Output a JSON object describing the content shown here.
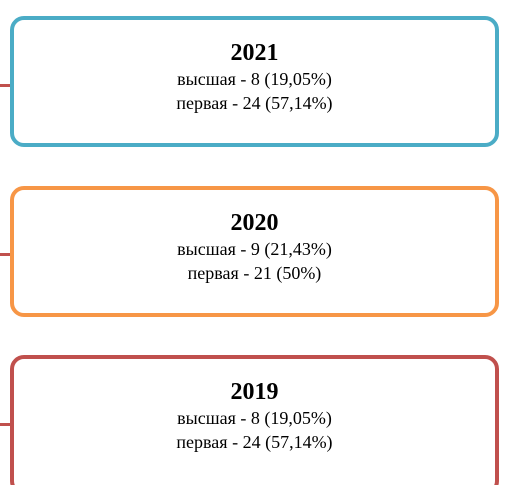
{
  "boxes": [
    {
      "title": "2021",
      "lines": [
        "высшая - 8 (19,05%)",
        "первая - 24 (57,14%)"
      ]
    },
    {
      "title": "2020",
      "lines": [
        "высшая - 9 (21,43%)",
        "первая - 21 (50%)"
      ]
    },
    {
      "title": "2019",
      "lines": [
        "высшая - 8 (19,05%)",
        "первая - 24 (57,14%)"
      ]
    }
  ]
}
